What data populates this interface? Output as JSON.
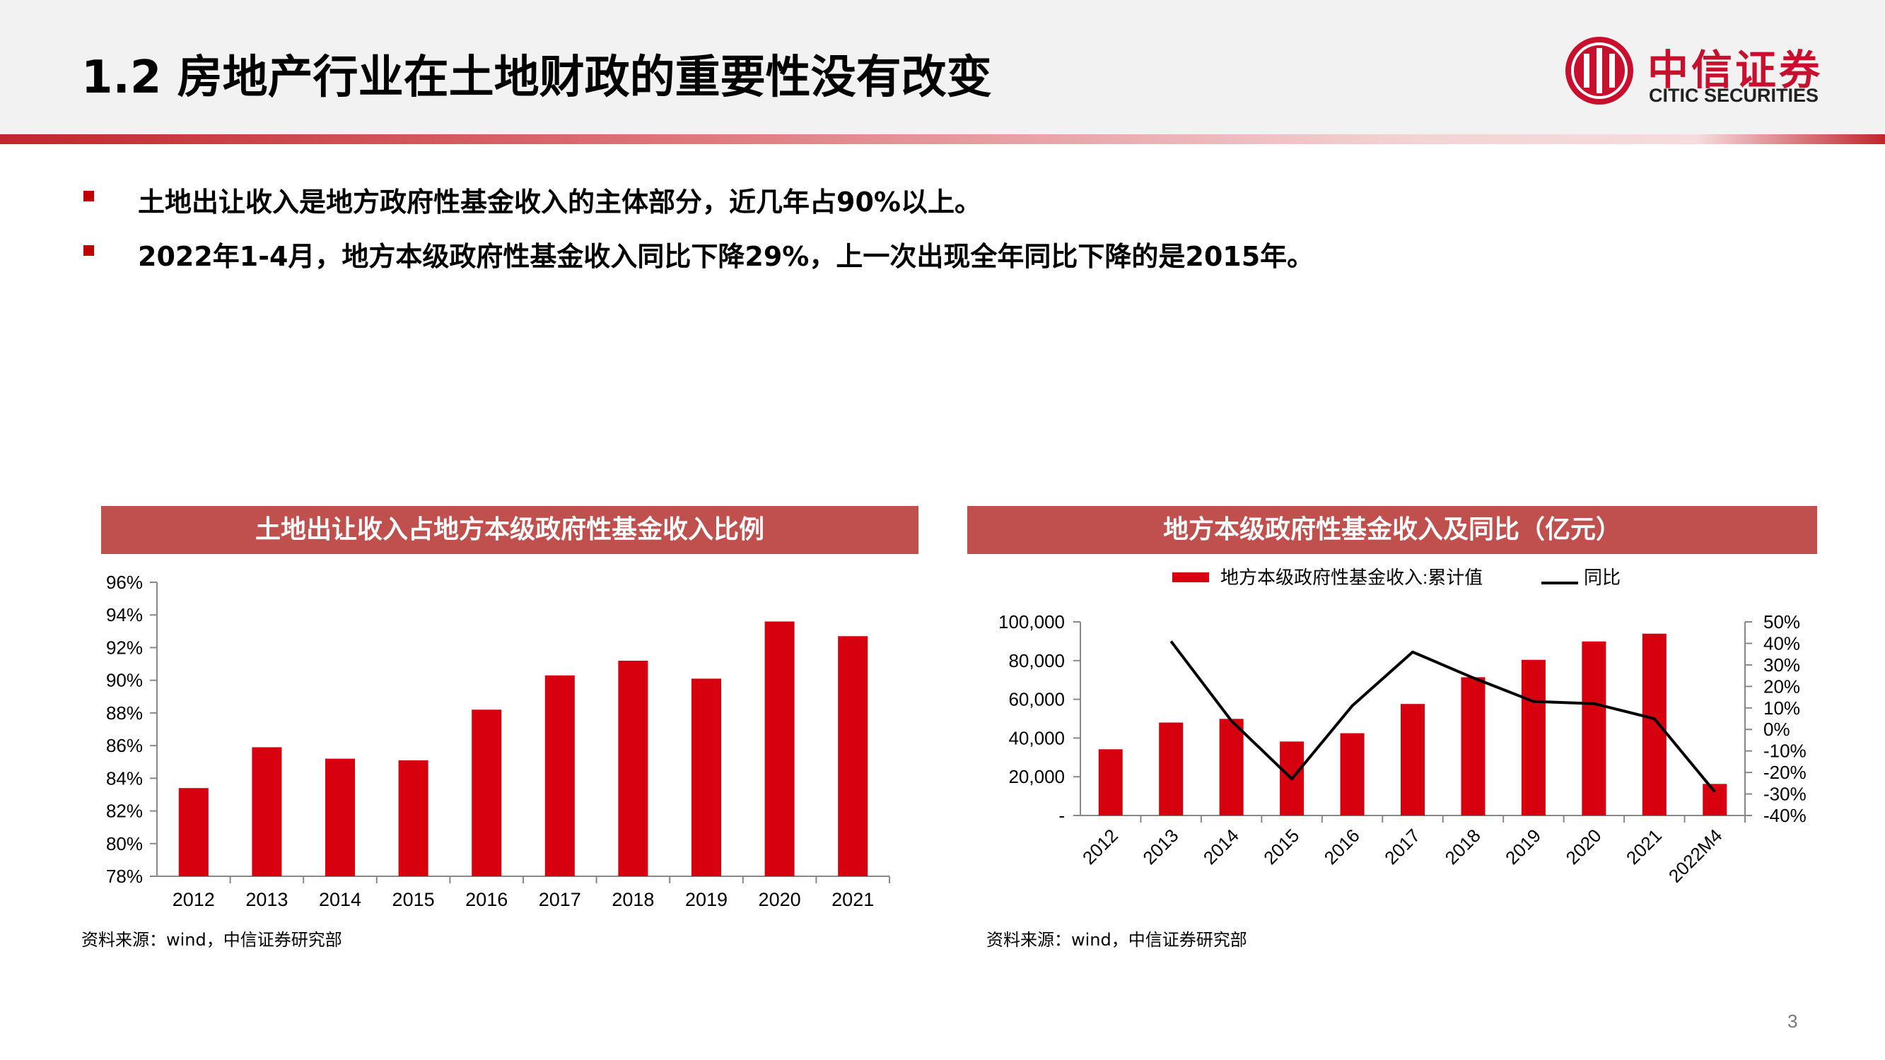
{
  "slide": {
    "title": "1.2 房地产行业在土地财政的重要性没有改变",
    "page_number": "3",
    "logo": {
      "cn": "中信证券",
      "en": "CITIC SECURITIES"
    },
    "bullets": [
      "土地出让收入是地方政府性基金收入的主体部分，近几年占90%以上。",
      "2022年1-4月，地方本级政府性基金收入同比下降29%，上一次出现全年同比下降的是2015年。"
    ],
    "colors": {
      "accent": "#c0504d",
      "bar": "#d6000f",
      "line": "#000000",
      "bullet": "#c00000"
    }
  },
  "left_panel": {
    "heading": "土地出让收入占地方本级政府性基金收入比例",
    "source": "资料来源：wind，中信证券研究部"
  },
  "right_panel": {
    "heading": "地方本级政府性基金收入及同比（亿元）",
    "source": "资料来源：wind，中信证券研究部"
  },
  "chart_data": [
    {
      "type": "bar",
      "title": "土地出让收入占地方本级政府性基金收入比例",
      "categories": [
        "2012",
        "2013",
        "2014",
        "2015",
        "2016",
        "2017",
        "2018",
        "2019",
        "2020",
        "2021"
      ],
      "values": [
        83.4,
        85.9,
        85.2,
        85.1,
        88.2,
        90.3,
        91.2,
        90.1,
        93.6,
        92.7
      ],
      "unit": "%",
      "ylim": [
        78,
        96
      ],
      "yticks": [
        "78%",
        "80%",
        "82%",
        "84%",
        "86%",
        "88%",
        "90%",
        "92%",
        "94%",
        "96%"
      ],
      "grid": false
    },
    {
      "type": "bar+line",
      "title": "地方本级政府性基金收入及同比（亿元）",
      "categories": [
        "2012",
        "2013",
        "2014",
        "2015",
        "2016",
        "2017",
        "2018",
        "2019",
        "2020",
        "2021",
        "2022M4"
      ],
      "series": [
        {
          "name": "地方本级政府性基金收入:累计值",
          "type": "bar",
          "axis": "left",
          "values": [
            34200,
            48000,
            49900,
            38200,
            42500,
            57600,
            71400,
            80400,
            89900,
            93900,
            16300
          ]
        },
        {
          "name": "同比",
          "type": "line",
          "axis": "right",
          "values": [
            null,
            41,
            4,
            -23,
            11,
            36,
            24,
            13,
            12,
            5,
            -29
          ]
        }
      ],
      "ylim_left": [
        0,
        100000
      ],
      "yticks_left": [
        "-",
        "20,000",
        "40,000",
        "60,000",
        "80,000",
        "100,000"
      ],
      "ylim_right": [
        -40,
        50
      ],
      "yticks_right": [
        "-40%",
        "-30%",
        "-20%",
        "-10%",
        "0%",
        "10%",
        "20%",
        "30%",
        "40%",
        "50%"
      ],
      "legend": "top-center",
      "grid": false
    }
  ]
}
